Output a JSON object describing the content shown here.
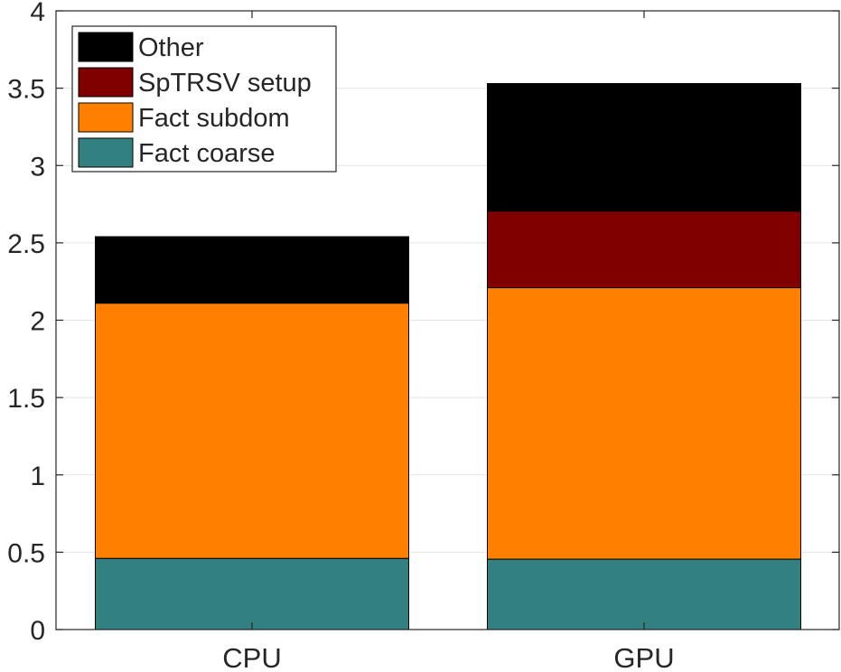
{
  "chart_data": {
    "type": "bar",
    "stacked": true,
    "categories": [
      "CPU",
      "GPU"
    ],
    "series": [
      {
        "name": "Fact coarse",
        "color": "#338080",
        "values": [
          0.46,
          0.455
        ]
      },
      {
        "name": "Fact subdom",
        "color": "#FF8000",
        "values": [
          1.65,
          1.755
        ]
      },
      {
        "name": "SpTRSV setup",
        "color": "#800000",
        "values": [
          0,
          0.495
        ]
      },
      {
        "name": "Other",
        "color": "#000000",
        "values": [
          0.43,
          0.825
        ]
      }
    ],
    "ylim": [
      0,
      4
    ],
    "yticks": [
      "0",
      "0.5",
      "1",
      "1.5",
      "2",
      "2.5",
      "3",
      "3.5",
      "4"
    ],
    "xlabel": "",
    "ylabel": "",
    "title": "",
    "grid": "y",
    "legend": {
      "placement": "top-left",
      "order": [
        "Other",
        "SpTRSV setup",
        "Fact subdom",
        "Fact coarse"
      ]
    }
  }
}
